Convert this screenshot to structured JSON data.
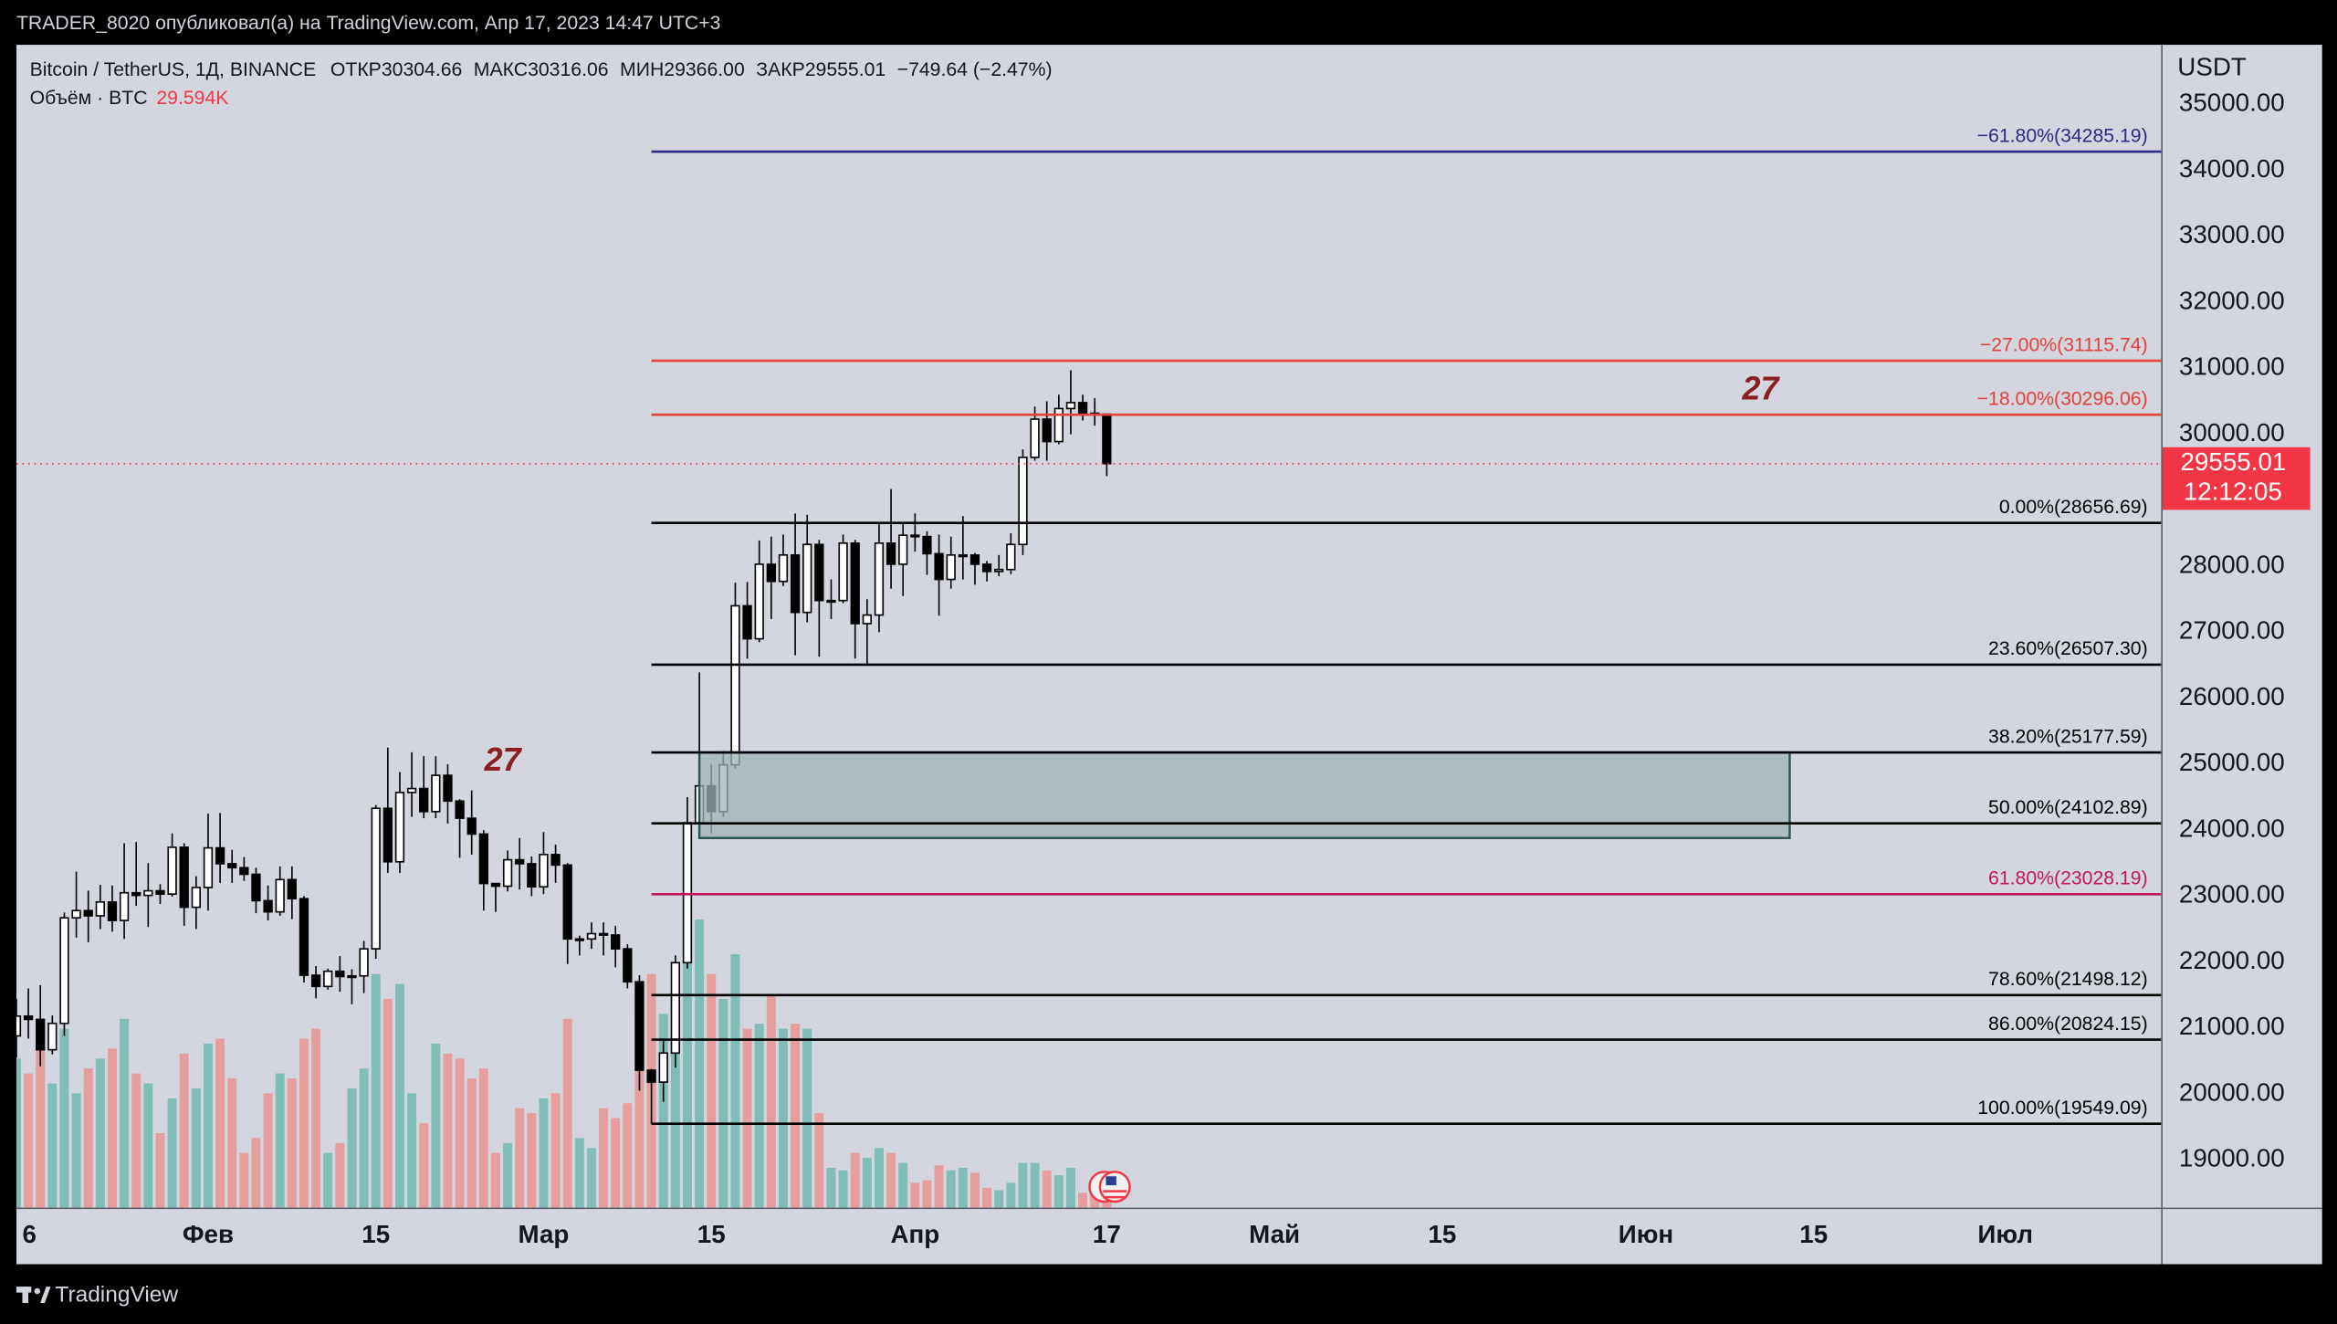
{
  "header": {
    "text": "TRADER_8020 опубликовал(а) на TradingView.com, Апр 17, 2023 14:47 UTC+3"
  },
  "footer": {
    "logo": "TradingView"
  },
  "chart_data": {
    "type": "candlestick",
    "legend": {
      "symbol": "Bitcoin / TetherUS, 1Д, BINANCE",
      "items": [
        {
          "label": "ОТКР",
          "value": "30304.66"
        },
        {
          "label": "МАКС",
          "value": "30316.06"
        },
        {
          "label": "МИН",
          "value": "29366.00"
        },
        {
          "label": "ЗАКР",
          "value": "29555.01"
        }
      ],
      "change": "−749.64 (−2.47%)",
      "volume_title": "Объём · BTC",
      "volume_value": "29.594K"
    },
    "currency": "USDT",
    "grid": false,
    "up_color": "#ffffff",
    "down_color": "#000000",
    "volume_up_color": "#7fbdb6",
    "volume_down_color": "#e59d9d",
    "x": [
      "01-16",
      "01-17",
      "01-18",
      "01-19",
      "01-20",
      "01-21",
      "01-22",
      "01-23",
      "01-24",
      "01-25",
      "01-26",
      "01-27",
      "01-28",
      "01-29",
      "01-30",
      "01-31",
      "02-01",
      "02-02",
      "02-03",
      "02-04",
      "02-05",
      "02-06",
      "02-07",
      "02-08",
      "02-09",
      "02-10",
      "02-11",
      "02-12",
      "02-13",
      "02-14",
      "02-15",
      "02-16",
      "02-17",
      "02-18",
      "02-19",
      "02-20",
      "02-21",
      "02-22",
      "02-23",
      "02-24",
      "02-25",
      "02-26",
      "02-27",
      "02-28",
      "03-01",
      "03-02",
      "03-03",
      "03-04",
      "03-05",
      "03-06",
      "03-07",
      "03-08",
      "03-09",
      "03-10",
      "03-11",
      "03-12",
      "03-13",
      "03-14",
      "03-15",
      "03-16",
      "03-17",
      "03-18",
      "03-19",
      "03-20",
      "03-21",
      "03-22",
      "03-23",
      "03-24",
      "03-25",
      "03-26",
      "03-27",
      "03-28",
      "03-29",
      "03-30",
      "03-31",
      "04-01",
      "04-02",
      "04-03",
      "04-04",
      "04-05",
      "04-06",
      "04-07",
      "04-08",
      "04-09",
      "04-10",
      "04-11",
      "04-12",
      "04-13",
      "04-14",
      "04-15",
      "04-16",
      "04-17"
    ],
    "open": [
      20880,
      21180,
      21130,
      20670,
      21070,
      22670,
      22780,
      22700,
      22910,
      22630,
      23050,
      23010,
      23080,
      23030,
      23740,
      22830,
      23130,
      23730,
      23490,
      23430,
      23330,
      22930,
      22760,
      23250,
      22960,
      21800,
      21630,
      21860,
      21780,
      21790,
      22200,
      24330,
      23520,
      24570,
      24630,
      24280,
      24830,
      24440,
      24180,
      23940,
      23190,
      23150,
      23550,
      23490,
      23140,
      23630,
      23470,
      22350,
      22350,
      22430,
      22410,
      22200,
      21700,
      20360,
      20180,
      20620,
      21990,
      24110,
      24670,
      24280,
      24990,
      27400,
      26900,
      28030,
      27770,
      28170,
      27300,
      28330,
      27480,
      27480,
      28350,
      27130,
      27260,
      28350,
      28030,
      28470,
      28450,
      28190,
      27800,
      28170,
      28170,
      28030,
      27920,
      27950,
      28330,
      29650,
      30230,
      29890,
      30390,
      30480,
      30320,
      30304.66
    ],
    "high": [
      21440,
      21600,
      21650,
      21190,
      22750,
      23370,
      23080,
      23170,
      23160,
      23800,
      23820,
      23500,
      23180,
      23950,
      23800,
      23300,
      24250,
      24260,
      23700,
      23590,
      23430,
      23160,
      23450,
      23450,
      23000,
      21940,
      21900,
      22090,
      21890,
      22320,
      24380,
      25250,
      24880,
      25180,
      25120,
      25120,
      25000,
      24470,
      24600,
      24000,
      23200,
      23690,
      23880,
      23600,
      23970,
      23780,
      23500,
      22400,
      22600,
      22600,
      22550,
      22270,
      21800,
      20380,
      20800,
      22100,
      24500,
      26390,
      25000,
      25200,
      27750,
      27760,
      28390,
      28450,
      28480,
      28800,
      28780,
      28400,
      27800,
      28480,
      28400,
      27500,
      28650,
      29170,
      28650,
      28800,
      28530,
      28480,
      28450,
      28760,
      28200,
      28080,
      28170,
      28500,
      29770,
      30420,
      30500,
      30600,
      30970,
      30600,
      30550,
      30316.06
    ],
    "low": [
      20550,
      20840,
      20420,
      20600,
      20880,
      22370,
      22300,
      22500,
      22460,
      22350,
      22850,
      22530,
      22880,
      22990,
      22550,
      22500,
      22780,
      23200,
      23200,
      23230,
      22740,
      22630,
      22700,
      22650,
      21690,
      21450,
      21580,
      21550,
      21360,
      21530,
      22050,
      23350,
      23350,
      24200,
      24180,
      24180,
      24100,
      23580,
      23630,
      22780,
      22760,
      23070,
      23100,
      23000,
      23030,
      23200,
      21970,
      22100,
      22200,
      22100,
      21920,
      21600,
      20050,
      19549.09,
      19880,
      20400,
      21900,
      24070,
      23950,
      24200,
      24930,
      26600,
      26850,
      27200,
      27700,
      26650,
      27150,
      26630,
      27200,
      27440,
      26600,
      26500,
      27000,
      27660,
      27550,
      28220,
      27870,
      27250,
      27660,
      27800,
      27720,
      27770,
      27850,
      27880,
      28170,
      29600,
      29600,
      29850,
      30000,
      30210,
      30130,
      29366
    ],
    "close": [
      21180,
      21130,
      20670,
      21070,
      22670,
      22780,
      22700,
      22910,
      22630,
      23050,
      23010,
      23080,
      23030,
      23740,
      22830,
      23130,
      23730,
      23490,
      23430,
      23330,
      22930,
      22760,
      23250,
      22960,
      21800,
      21630,
      21860,
      21780,
      21790,
      22200,
      24330,
      23520,
      24570,
      24630,
      24280,
      24830,
      24440,
      24180,
      23940,
      23190,
      23150,
      23550,
      23490,
      23140,
      23630,
      23470,
      22350,
      22350,
      22430,
      22410,
      22200,
      21700,
      20360,
      20180,
      20620,
      21990,
      24110,
      24670,
      24280,
      24990,
      27400,
      26900,
      28030,
      27770,
      28170,
      27300,
      28330,
      27480,
      27480,
      28350,
      27130,
      27260,
      28350,
      28030,
      28470,
      28450,
      28190,
      27800,
      28170,
      28170,
      28030,
      27920,
      27950,
      28330,
      29650,
      30230,
      29890,
      30390,
      30480,
      30320,
      30304.66,
      29555.01
    ],
    "volume": [
      300000,
      270000,
      330000,
      250000,
      360000,
      230000,
      280000,
      300000,
      320000,
      380000,
      270000,
      250000,
      150000,
      220000,
      310000,
      240000,
      330000,
      340000,
      260000,
      110000,
      140000,
      230000,
      270000,
      260000,
      340000,
      360000,
      110000,
      130000,
      240000,
      280000,
      470000,
      420000,
      450000,
      230000,
      170000,
      330000,
      310000,
      300000,
      260000,
      280000,
      110000,
      130000,
      200000,
      190000,
      220000,
      230000,
      380000,
      140000,
      120000,
      200000,
      180000,
      210000,
      390000,
      470000,
      390000,
      420000,
      520000,
      580000,
      470000,
      420000,
      510000,
      360000,
      370000,
      430000,
      360000,
      370000,
      360000,
      190000,
      80000,
      75000,
      110000,
      100000,
      120000,
      110000,
      90000,
      50000,
      55000,
      85000,
      75000,
      80000,
      70000,
      40000,
      35000,
      50000,
      90000,
      90000,
      75000,
      65000,
      80000,
      30000,
      35000,
      29594
    ],
    "volume_ylim": [
      0,
      2340000
    ],
    "xlim": [
      "01-16",
      "07-14"
    ],
    "xticks": [
      {
        "value": "01-16",
        "label": "6"
      },
      {
        "value": "02-01",
        "label": "Фев"
      },
      {
        "value": "02-15",
        "label": "15"
      },
      {
        "value": "03-01",
        "label": "Мар"
      },
      {
        "value": "03-15",
        "label": "15"
      },
      {
        "value": "04-01",
        "label": "Апр"
      },
      {
        "value": "04-17",
        "label": "17"
      },
      {
        "value": "05-01",
        "label": "Май"
      },
      {
        "value": "05-15",
        "label": "15"
      },
      {
        "value": "06-01",
        "label": "Июн"
      },
      {
        "value": "06-15",
        "label": "15"
      },
      {
        "value": "07-01",
        "label": "Июл"
      }
    ],
    "ylim": [
      18277,
      35904
    ],
    "yticks": [
      {
        "value": 19000,
        "label": "19000.00"
      },
      {
        "value": 20000,
        "label": "20000.00"
      },
      {
        "value": 21000,
        "label": "21000.00"
      },
      {
        "value": 22000,
        "label": "22000.00"
      },
      {
        "value": 23000,
        "label": "23000.00"
      },
      {
        "value": 24000,
        "label": "24000.00"
      },
      {
        "value": 25000,
        "label": "25000.00"
      },
      {
        "value": 26000,
        "label": "26000.00"
      },
      {
        "value": 27000,
        "label": "27000.00"
      },
      {
        "value": 28000,
        "label": "28000.00"
      },
      {
        "value": 29000,
        "label": "29000.00"
      },
      {
        "value": 30000,
        "label": "30000.00"
      },
      {
        "value": 31000,
        "label": "31000.00"
      },
      {
        "value": 32000,
        "label": "32000.00"
      },
      {
        "value": 33000,
        "label": "33000.00"
      },
      {
        "value": 34000,
        "label": "34000.00"
      },
      {
        "value": 35000,
        "label": "35000.00"
      }
    ],
    "price_badge": {
      "price": "29555.01",
      "countdown": "12:12:05",
      "color": "#f23645"
    },
    "fib_start": "03-10",
    "fib_levels": [
      {
        "value": 34285.19,
        "label": "−61.80%(34285.19)",
        "color": "#2c2a86"
      },
      {
        "value": 31115.74,
        "label": "−27.00%(31115.74)",
        "color": "#e5403b"
      },
      {
        "value": 30296.06,
        "label": "−18.00%(30296.06)",
        "color": "#e5403b"
      },
      {
        "value": 28656.69,
        "label": "0.00%(28656.69)",
        "color": "#000000"
      },
      {
        "value": 26507.3,
        "label": "23.60%(26507.30)",
        "color": "#000000"
      },
      {
        "value": 25177.59,
        "label": "38.20%(25177.59)",
        "color": "#000000"
      },
      {
        "value": 24102.89,
        "label": "50.00%(24102.89)",
        "color": "#000000"
      },
      {
        "value": 23028.19,
        "label": "61.80%(23028.19)",
        "color": "#c2185b"
      },
      {
        "value": 21498.12,
        "label": "78.60%(21498.12)",
        "color": "#000000"
      },
      {
        "value": 20824.15,
        "label": "86.00%(20824.15)",
        "color": "#000000"
      },
      {
        "value": 19549.09,
        "label": "100.00%(19549.09)",
        "color": "#000000"
      }
    ],
    "zone": {
      "top": 25177.59,
      "bottom": 23880,
      "start": "03-14",
      "end": "06-13",
      "color": "#9fb3b5"
    },
    "annotations": [
      "27",
      "27"
    ]
  }
}
